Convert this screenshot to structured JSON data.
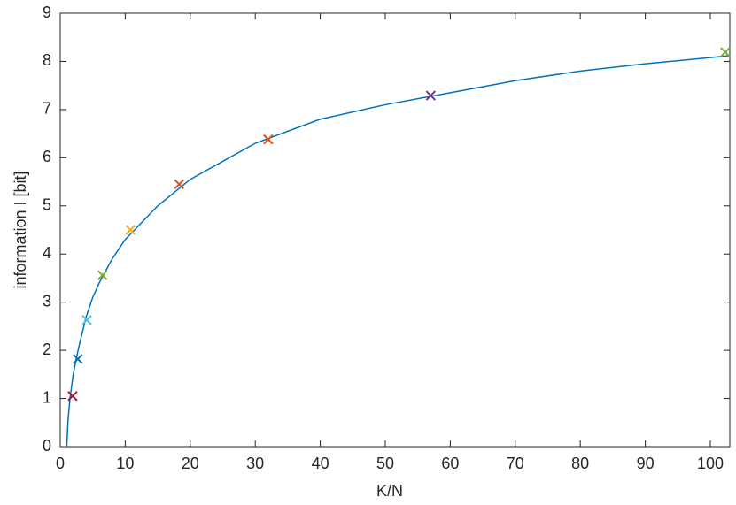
{
  "chart_data": {
    "type": "line",
    "xlabel": "K/N",
    "ylabel": "information I [bit]",
    "xlim": [
      0,
      103
    ],
    "ylim": [
      0,
      9
    ],
    "xticks": [
      0,
      10,
      20,
      30,
      40,
      50,
      60,
      70,
      80,
      90,
      100
    ],
    "yticks": [
      0,
      1,
      2,
      3,
      4,
      5,
      6,
      7,
      8,
      9
    ],
    "series": [
      {
        "type": "line",
        "color": "#0072bd",
        "x": [
          1,
          1.2,
          1.5,
          2,
          2.5,
          3,
          4,
          5,
          6,
          8,
          10,
          15,
          20,
          30,
          40,
          50,
          60,
          70,
          80,
          90,
          100,
          103
        ],
        "values": [
          0,
          0.55,
          1.0,
          1.5,
          1.85,
          2.15,
          2.7,
          3.1,
          3.4,
          3.9,
          4.3,
          5.0,
          5.55,
          6.3,
          6.8,
          7.1,
          7.35,
          7.6,
          7.8,
          7.95,
          8.08,
          8.12
        ]
      },
      {
        "type": "scatter",
        "colors": [
          "#a2142f",
          "#0072bd",
          "#4dbeee",
          "#77ac30",
          "#edb120",
          "#d95319",
          "#d95319",
          "#7e2f8e",
          "#77ac30"
        ],
        "x": [
          1.9,
          2.7,
          4.1,
          6.5,
          10.8,
          18.3,
          32.0,
          57.0,
          102.3
        ],
        "values": [
          1.05,
          1.82,
          2.63,
          3.56,
          4.5,
          5.45,
          6.38,
          7.29,
          8.19
        ]
      }
    ]
  }
}
